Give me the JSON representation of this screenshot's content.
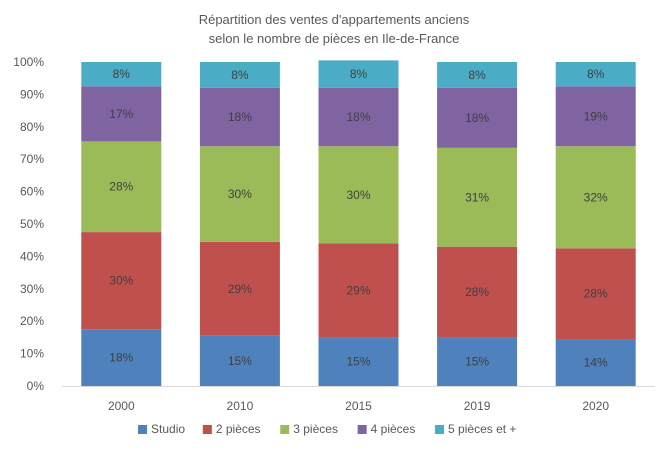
{
  "chart_data": {
    "type": "bar",
    "stacked": true,
    "title_lines": [
      "Répartition des ventes d'appartements anciens",
      "selon le nombre de pièces en Ile-de-France"
    ],
    "categories": [
      "2000",
      "2010",
      "2015",
      "2019",
      "2020"
    ],
    "y_ticks": [
      "0%",
      "10%",
      "20%",
      "30%",
      "40%",
      "50%",
      "60%",
      "70%",
      "80%",
      "90%",
      "100%"
    ],
    "ylim": [
      0,
      100
    ],
    "grid": false,
    "legend_position": "bottom",
    "series": [
      {
        "name": "Studio",
        "color": "#4F81BD",
        "values": [
          17.5,
          15.5,
          15,
          15,
          14.5
        ],
        "labels": [
          "18%",
          "15%",
          "15%",
          "15%",
          "14%"
        ]
      },
      {
        "name": "2 pièces",
        "color": "#C0504D",
        "values": [
          30,
          29,
          29,
          28,
          28
        ],
        "labels": [
          "30%",
          "29%",
          "29%",
          "28%",
          "28%"
        ]
      },
      {
        "name": "3 pièces",
        "color": "#9BBB59",
        "values": [
          28,
          29.5,
          30,
          30.5,
          31.5
        ],
        "labels": [
          "28%",
          "30%",
          "30%",
          "31%",
          "32%"
        ]
      },
      {
        "name": "4 pièces",
        "color": "#8064A2",
        "values": [
          17,
          18,
          18,
          18.5,
          18.5
        ],
        "labels": [
          "17%",
          "18%",
          "18%",
          "18%",
          "19%"
        ]
      },
      {
        "name": "5 pièces et +",
        "color": "#4BACC6",
        "values": [
          7.5,
          8,
          8.5,
          8,
          7.5
        ],
        "labels": [
          "8%",
          "8%",
          "8%",
          "8%",
          "8%"
        ]
      }
    ]
  }
}
